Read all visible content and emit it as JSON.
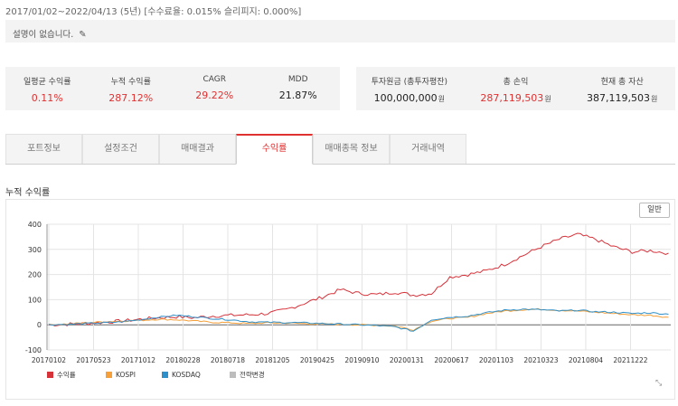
{
  "period_text": "2017/01/02~2022/04/13 (5년) [수수료율: 0.015% 슬리피지: 0.000%]",
  "description": "설명이 없습니다.",
  "icons": {
    "edit": "pencil-icon",
    "resize": "resize-handle-icon"
  },
  "stats_left": [
    {
      "label": "일평균 수익률",
      "value": "0.11%",
      "color": "#e03131"
    },
    {
      "label": "누적 수익률",
      "value": "287.12%",
      "color": "#e03131"
    },
    {
      "label": "CAGR",
      "value": "29.22%",
      "color": "#e03131"
    },
    {
      "label": "MDD",
      "value": "21.87%",
      "color": "#222222"
    }
  ],
  "stats_right": [
    {
      "label": "투자원금 (총투자평잔)",
      "value": "100,000,000",
      "unit": "원",
      "color": "#222222"
    },
    {
      "label": "총 손익",
      "value": "287,119,503",
      "unit": "원",
      "color": "#e03131"
    },
    {
      "label": "현재 총 자산",
      "value": "387,119,503",
      "unit": "원",
      "color": "#222222"
    }
  ],
  "tabs": [
    {
      "label": "포트정보",
      "active": false
    },
    {
      "label": "설정조건",
      "active": false
    },
    {
      "label": "매매결과",
      "active": false
    },
    {
      "label": "수익률",
      "active": true
    },
    {
      "label": "매매종목 정보",
      "active": false
    },
    {
      "label": "거래내역",
      "active": false
    }
  ],
  "section_title": "누적 수익률",
  "mode_button": "일반",
  "chart_data": {
    "type": "line",
    "title": "누적 수익률",
    "ylim": [
      -100,
      400
    ],
    "yticks": [
      400,
      300,
      200,
      100,
      0,
      -100
    ],
    "x_ticks": [
      "20170102",
      "20170523",
      "20171012",
      "20180228",
      "20180718",
      "20181205",
      "20190425",
      "20190910",
      "20200131",
      "20200617",
      "20201103",
      "20210323",
      "20210804",
      "20211222"
    ],
    "grid": true,
    "legend_position": "bottom-left",
    "series": [
      {
        "name": "수익률",
        "color": "#d6323a",
        "values": [
          0,
          2,
          5,
          10,
          15,
          22,
          28,
          32,
          28,
          35,
          38,
          40,
          45,
          60,
          85,
          110,
          140,
          125,
          120,
          130,
          118,
          125,
          190,
          200,
          215,
          240,
          275,
          310,
          340,
          360,
          340,
          310,
          290,
          295,
          285
        ]
      },
      {
        "name": "KOSPI",
        "color": "#f5a03a",
        "values": [
          0,
          3,
          8,
          12,
          15,
          18,
          22,
          20,
          15,
          10,
          8,
          5,
          8,
          7,
          5,
          3,
          2,
          0,
          -2,
          -5,
          -20,
          15,
          25,
          30,
          45,
          55,
          60,
          62,
          58,
          55,
          50,
          45,
          40,
          38,
          30
        ]
      },
      {
        "name": "KOSDAQ",
        "color": "#2f8fc8",
        "values": [
          0,
          2,
          5,
          8,
          12,
          20,
          30,
          38,
          32,
          25,
          20,
          12,
          10,
          9,
          8,
          5,
          3,
          0,
          -3,
          -8,
          -25,
          20,
          30,
          35,
          48,
          58,
          62,
          60,
          55,
          58,
          52,
          50,
          45,
          48,
          42
        ]
      },
      {
        "name": "전략변경",
        "color": "#bdbdbd",
        "values": []
      }
    ]
  }
}
